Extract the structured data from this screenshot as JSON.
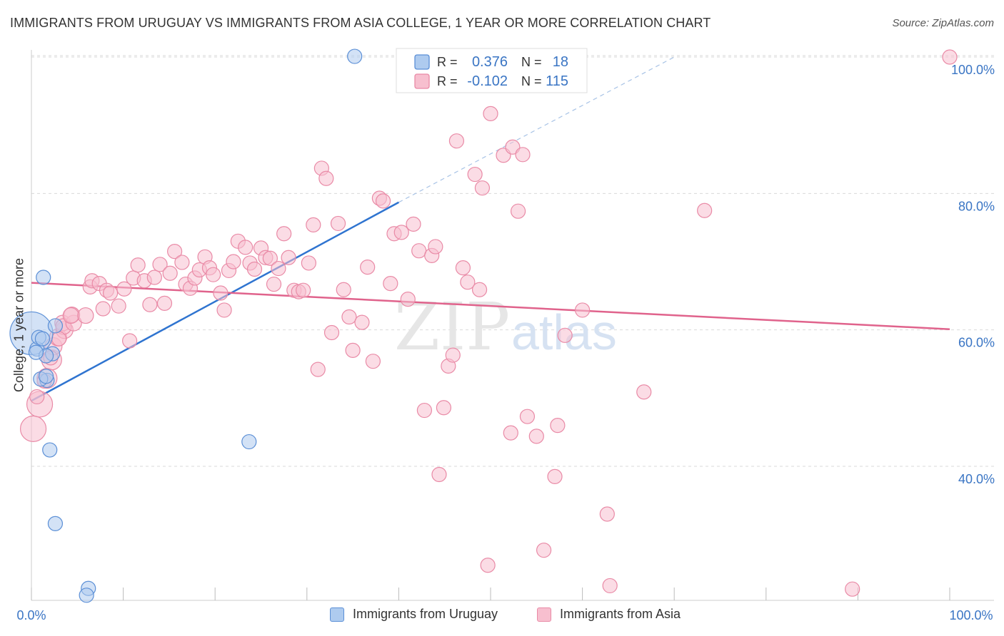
{
  "title": "IMMIGRANTS FROM URUGUAY VS IMMIGRANTS FROM ASIA COLLEGE, 1 YEAR OR MORE CORRELATION CHART",
  "source": "Source: ZipAtlas.com",
  "watermark": {
    "zip": "ZIP",
    "atlas": "atlas"
  },
  "colors": {
    "blue_fill": "#aecbef",
    "blue_stroke": "#5b8fd6",
    "blue_line": "#2f74d0",
    "pink_fill": "#f7bfcf",
    "pink_stroke": "#e98aa6",
    "pink_line": "#e0638c",
    "tick_label": "#3a75c4",
    "grid": "#d9d9d9"
  },
  "chart_data": {
    "type": "scatter",
    "title": "IMMIGRANTS FROM URUGUAY VS IMMIGRANTS FROM ASIA COLLEGE, 1 YEAR OR MORE CORRELATION CHART",
    "xlabel": "",
    "ylabel": "College, 1 year or more",
    "xlim": [
      0,
      100
    ],
    "ylim": [
      20,
      102
    ],
    "x_tick_labels": [
      "0.0%",
      "100.0%"
    ],
    "y_ticks": [
      40,
      60,
      80,
      100
    ],
    "y_tick_labels": [
      "40.0%",
      "60.0%",
      "80.0%",
      "100.0%"
    ],
    "grid": true,
    "legend_top": [
      {
        "r_label": "R =",
        "r_value": "0.376",
        "n_label": "N =",
        "n_value": "18"
      },
      {
        "r_label": "R =",
        "r_value": "-0.102",
        "n_label": "N =",
        "n_value": "115"
      }
    ],
    "series": [
      {
        "name": "Immigrants from Uruguay",
        "color": "blue",
        "trend": {
          "x0": 0,
          "y0": 49.6,
          "x1": 40,
          "y1": 78.7,
          "dash_to_x": 70,
          "dash_to_y": 100
        },
        "points": [
          [
            0,
            59.5
          ],
          [
            0.6,
            57.2
          ],
          [
            0.8,
            58.9
          ],
          [
            1.2,
            58.7
          ],
          [
            1.7,
            52.6
          ],
          [
            1.0,
            52.8
          ],
          [
            2.3,
            56.5
          ],
          [
            1.6,
            56.2
          ],
          [
            2.6,
            60.6
          ],
          [
            1.3,
            67.7
          ],
          [
            2.0,
            42.4
          ],
          [
            2.6,
            31.6
          ],
          [
            6.2,
            22.1
          ],
          [
            6.0,
            21.1
          ],
          [
            23.7,
            43.6
          ],
          [
            35.2,
            100.1
          ],
          [
            1.6,
            53.2
          ],
          [
            0.5,
            56.7
          ]
        ],
        "sizes": [
          30,
          10,
          10,
          10,
          10,
          10,
          10,
          10,
          10,
          10,
          10,
          10,
          10,
          10,
          10,
          10,
          10,
          10
        ]
      },
      {
        "name": "Immigrants from Asia",
        "color": "pink",
        "trend": {
          "x0": 0,
          "y0": 66.9,
          "x1": 100,
          "y1": 60.1
        },
        "points": [
          [
            0.2,
            45.5
          ],
          [
            0.9,
            49.1
          ],
          [
            1.7,
            52.9
          ],
          [
            2.2,
            55.6
          ],
          [
            2.4,
            57.6
          ],
          [
            2.9,
            58.9
          ],
          [
            3.6,
            60.0
          ],
          [
            3.4,
            61.0
          ],
          [
            3.5,
            60.5
          ],
          [
            4.6,
            61.0
          ],
          [
            4.4,
            62.2
          ],
          [
            4.3,
            62.1
          ],
          [
            5.9,
            62.1
          ],
          [
            6.4,
            66.3
          ],
          [
            6.6,
            67.2
          ],
          [
            7.4,
            66.8
          ],
          [
            7.8,
            63.1
          ],
          [
            8.2,
            65.8
          ],
          [
            8.6,
            65.4
          ],
          [
            9.5,
            63.5
          ],
          [
            10.1,
            66.0
          ],
          [
            10.7,
            58.4
          ],
          [
            11.1,
            67.6
          ],
          [
            11.6,
            69.5
          ],
          [
            12.3,
            67.2
          ],
          [
            12.9,
            63.7
          ],
          [
            13.4,
            67.7
          ],
          [
            14.0,
            69.6
          ],
          [
            14.5,
            63.9
          ],
          [
            15.1,
            68.3
          ],
          [
            15.6,
            71.5
          ],
          [
            16.4,
            69.9
          ],
          [
            16.8,
            66.7
          ],
          [
            17.3,
            66.1
          ],
          [
            17.8,
            67.6
          ],
          [
            18.3,
            68.8
          ],
          [
            18.9,
            70.7
          ],
          [
            19.4,
            69.1
          ],
          [
            19.8,
            68.1
          ],
          [
            20.6,
            65.4
          ],
          [
            21.0,
            62.9
          ],
          [
            21.5,
            68.7
          ],
          [
            22.0,
            70.0
          ],
          [
            22.5,
            73.0
          ],
          [
            23.3,
            72.1
          ],
          [
            23.8,
            69.8
          ],
          [
            24.3,
            68.9
          ],
          [
            25.0,
            72.0
          ],
          [
            25.5,
            70.6
          ],
          [
            26.0,
            70.5
          ],
          [
            26.4,
            66.7
          ],
          [
            26.9,
            69.0
          ],
          [
            27.5,
            74.1
          ],
          [
            28.0,
            70.6
          ],
          [
            28.6,
            65.8
          ],
          [
            29.1,
            65.6
          ],
          [
            29.6,
            65.8
          ],
          [
            30.2,
            69.8
          ],
          [
            30.7,
            75.4
          ],
          [
            31.2,
            54.2
          ],
          [
            31.6,
            83.7
          ],
          [
            32.1,
            82.2
          ],
          [
            32.7,
            59.6
          ],
          [
            33.4,
            75.6
          ],
          [
            34.0,
            65.9
          ],
          [
            34.6,
            61.9
          ],
          [
            35.0,
            57.0
          ],
          [
            36.0,
            61.1
          ],
          [
            36.6,
            69.2
          ],
          [
            37.2,
            55.4
          ],
          [
            37.9,
            79.3
          ],
          [
            38.3,
            78.9
          ],
          [
            39.1,
            66.8
          ],
          [
            39.5,
            74.1
          ],
          [
            40.3,
            74.3
          ],
          [
            41.0,
            64.5
          ],
          [
            41.6,
            75.5
          ],
          [
            42.2,
            71.6
          ],
          [
            42.8,
            48.2
          ],
          [
            43.6,
            70.9
          ],
          [
            44.0,
            72.2
          ],
          [
            44.4,
            38.8
          ],
          [
            44.9,
            48.6
          ],
          [
            45.4,
            54.7
          ],
          [
            45.9,
            56.3
          ],
          [
            46.3,
            87.7
          ],
          [
            47.0,
            69.1
          ],
          [
            47.5,
            67.0
          ],
          [
            48.3,
            82.8
          ],
          [
            48.8,
            65.9
          ],
          [
            49.1,
            80.8
          ],
          [
            50.0,
            91.7
          ],
          [
            51.4,
            85.6
          ],
          [
            52.2,
            44.9
          ],
          [
            52.4,
            86.8
          ],
          [
            53.0,
            77.4
          ],
          [
            53.5,
            85.7
          ],
          [
            54.0,
            47.3
          ],
          [
            55.0,
            44.4
          ],
          [
            55.8,
            27.7
          ],
          [
            57.0,
            38.5
          ],
          [
            57.3,
            46.0
          ],
          [
            58.1,
            59.2
          ],
          [
            60.0,
            62.9
          ],
          [
            62.7,
            33.0
          ],
          [
            63.0,
            22.5
          ],
          [
            66.7,
            50.9
          ],
          [
            73.3,
            77.5
          ],
          [
            89.4,
            22.0
          ],
          [
            100.0,
            100.0
          ],
          [
            1.4,
            52.5
          ],
          [
            2.1,
            55.9
          ],
          [
            3.0,
            58.7
          ],
          [
            49.7,
            25.5
          ],
          [
            0.6,
            50.2
          ]
        ],
        "sizes": [
          18,
          18,
          14,
          14,
          12,
          12,
          12,
          11,
          11,
          11,
          11,
          11,
          11,
          10,
          10,
          10,
          10,
          10,
          10,
          10,
          10,
          10,
          10,
          10,
          10,
          10,
          10,
          10,
          10,
          10,
          10,
          10,
          10,
          10,
          10,
          10,
          10,
          10,
          10,
          10,
          10,
          10,
          10,
          10,
          10,
          10,
          10,
          10,
          10,
          10,
          10,
          10,
          10,
          10,
          10,
          10,
          10,
          10,
          10,
          10,
          10,
          10,
          10,
          10,
          10,
          10,
          10,
          10,
          10,
          10,
          10,
          10,
          10,
          10,
          10,
          10,
          10,
          10,
          10,
          10,
          10,
          10,
          10,
          10,
          10,
          10,
          10,
          10,
          10,
          10,
          10,
          10,
          10,
          10,
          10,
          10,
          10,
          10,
          10,
          10,
          10,
          10,
          10,
          10,
          10,
          10,
          10,
          10,
          10,
          10,
          10,
          10,
          10,
          10,
          10
        ]
      }
    ]
  }
}
